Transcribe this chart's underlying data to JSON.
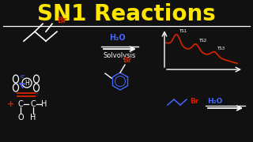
{
  "title": "SN1 Reactions",
  "title_color": "#FFE600",
  "bg_color": "#111111",
  "white": "#FFFFFF",
  "red": "#CC2200",
  "blue": "#4466FF",
  "ts_labels": [
    "TS1",
    "TS2",
    "TS3"
  ],
  "solvolysis_label": "Solvolysis",
  "figsize": [
    3.2,
    1.8
  ],
  "dpi": 100
}
